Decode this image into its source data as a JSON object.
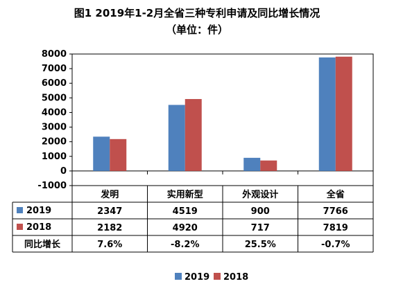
{
  "chart_data": {
    "type": "bar",
    "title": "图1  2019年1-2月全省三种专利申请及同比增长情况",
    "subtitle": "（单位：件）",
    "categories": [
      "发明",
      "实用新型",
      "外观设计",
      "全省"
    ],
    "series": [
      {
        "name": "2019",
        "values": [
          2347,
          4519,
          900,
          7766
        ],
        "color": "#4f81bd"
      },
      {
        "name": "2018",
        "values": [
          2182,
          4920,
          717,
          7819
        ],
        "color": "#c0504d"
      }
    ],
    "growth": {
      "label": "同比增长",
      "values": [
        "7.6%",
        "-8.2%",
        "25.5%",
        "-0.7%"
      ]
    },
    "ylim": [
      -1000,
      8000
    ],
    "yticks": [
      -1000,
      0,
      1000,
      2000,
      3000,
      4000,
      5000,
      6000,
      7000,
      8000
    ],
    "grid": false,
    "legend": "bottom"
  }
}
